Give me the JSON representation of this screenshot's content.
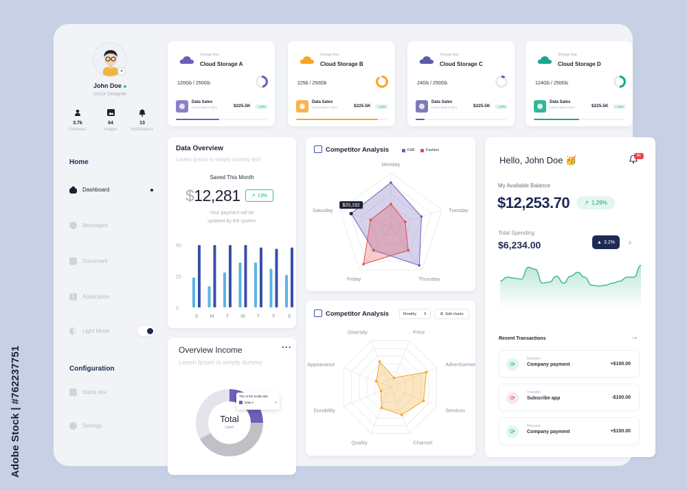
{
  "watermark": "Adobe Stock | #762237751",
  "profile": {
    "name": "John Doe",
    "role": "UI/UX Designer",
    "stats": [
      {
        "value": "3.7k",
        "label": "Followers",
        "icon": "person-icon"
      },
      {
        "value": "64",
        "label": "Images",
        "icon": "image-icon"
      },
      {
        "value": "13",
        "label": "Notifications",
        "icon": "bell-icon"
      }
    ]
  },
  "nav": {
    "home_heading": "Home",
    "items": [
      {
        "label": "Dashboard",
        "icon": "home-icon",
        "active": true
      },
      {
        "label": "Messages",
        "icon": "message-icon"
      },
      {
        "label": "Document",
        "icon": "document-icon"
      },
      {
        "label": "Application",
        "icon": "grid-icon"
      },
      {
        "label": "Light Mode",
        "icon": "contrast-icon",
        "toggle": true
      }
    ],
    "config_heading": "Configuration",
    "config_items": [
      {
        "label": "Stack dev",
        "icon": "stack-icon"
      },
      {
        "label": "Settings",
        "icon": "gear-icon"
      }
    ]
  },
  "storage": [
    {
      "eyebrow": "Storage Aaa",
      "title": "Cloud Storage A",
      "usage": "120Gb / 250Gb",
      "ds_title": "Data Sales",
      "ds_sub": "Lorem ipsum dolor",
      "value": "$225.5K",
      "pct": "↑ 12%",
      "color": "#6b5fb8",
      "fill": 0.48,
      "thumb": "#8e7ec9"
    },
    {
      "eyebrow": "Storage Aaa",
      "title": "Cloud Storage B",
      "usage": "225b / 250Gb",
      "ds_title": "Data Sales",
      "ds_sub": "Lorem ipsum dolor",
      "value": "$225.5K",
      "pct": "↑ 12%",
      "color": "#f5a623",
      "fill": 0.9,
      "thumb": "#f6b450"
    },
    {
      "eyebrow": "Storage Aaa",
      "title": "Cloud Storage C",
      "usage": "24Gb / 250Gb",
      "ds_title": "Data Sales",
      "ds_sub": "Lorem ipsum dolor",
      "value": "$225.5K",
      "pct": "↑ 12%",
      "color": "#5c5ba8",
      "fill": 0.1,
      "thumb": "#7e7ab8"
    },
    {
      "eyebrow": "Storage Aaa",
      "title": "Cloud Storage D",
      "usage": "124Gb / 250Gb",
      "ds_title": "Data Sales",
      "ds_sub": "Lorem ipsum dolor",
      "value": "$225.5K",
      "pct": "↑ 12%",
      "color": "#1aa68a",
      "fill": 0.5,
      "thumb": "#2fb89a"
    }
  ],
  "overview": {
    "title": "Data Overview",
    "subtitle": "Lorem Ipsum is simply dummy text",
    "saved_label": "Saved This Month",
    "currency": "$",
    "amount": "12,281",
    "badge": "13%",
    "note_line1": "Your payment will be",
    "note_line2": "updated by the system"
  },
  "chart_data": [
    {
      "type": "bar",
      "categories": [
        "S",
        "M",
        "T",
        "W",
        "T",
        "F",
        "S"
      ],
      "series": [
        {
          "values": [
            24,
            17,
            28,
            36,
            36,
            31,
            26
          ],
          "color": "#5ab4e5"
        },
        {
          "values": [
            50,
            50,
            50,
            50,
            48,
            47,
            48
          ],
          "color": "#3a4fa8"
        }
      ],
      "ylim": [
        0,
        50
      ],
      "yticks": [
        "50",
        "25",
        "0"
      ]
    },
    {
      "type": "radar",
      "title": "Competitor Analysis",
      "axes": [
        "Monday",
        "Tuesday",
        "Thursday",
        "Friday",
        "Saturday"
      ],
      "series": [
        {
          "name": "F&B",
          "color": "#6b5fb8",
          "values": [
            0.82,
            0.6,
            0.9,
            0.55,
            0.78
          ]
        },
        {
          "name": "Fashion",
          "color": "#e5484d",
          "values": [
            0.42,
            0.28,
            0.55,
            0.87,
            0.4
          ]
        }
      ],
      "tooltip": "$20,192"
    },
    {
      "type": "radar",
      "title": "Competitor Analysis",
      "axes": [
        "Price",
        "Advertisement",
        "Services",
        "Channel",
        "Quality",
        "Durability",
        "Appearance",
        "Diversity"
      ],
      "series": [
        {
          "color": "#f5a623",
          "values": [
            0.2,
            0.78,
            0.72,
            0.6,
            0.45,
            0.2,
            0.3,
            0.55
          ]
        }
      ]
    },
    {
      "type": "pie",
      "title": "Overview Income",
      "slices": [
        {
          "label": "Data A",
          "value": 25,
          "color": "#6b5fb8"
        },
        {
          "value": 42,
          "color": "#bfc1c6"
        },
        {
          "value": 33,
          "color": "#e3e5ea"
        }
      ]
    },
    {
      "type": "area",
      "color": "#3dbb8a",
      "values": [
        48,
        52,
        51,
        50,
        62,
        60,
        46,
        47,
        53,
        46,
        53,
        57,
        52,
        44,
        43,
        44,
        46,
        48,
        52,
        52,
        64
      ]
    }
  ],
  "income": {
    "title": "Overview Income",
    "subtitle": "Lorem Ipsum is simply dummy",
    "tooltip_title": "This is the tooltip title",
    "tooltip_item": "Data A",
    "center_big": "Total",
    "center_small": "Label"
  },
  "competitor1": {
    "title": "Competitor Analysis",
    "legend": [
      "F&B",
      "Fashion"
    ],
    "tooltip": "$20,192"
  },
  "competitor2": {
    "title": "Competitor Analysis",
    "period": "Monthly",
    "edit": "Edit charts"
  },
  "wallet": {
    "greeting": "Hello, John Doe",
    "emoji": "🥳",
    "notif": "9+",
    "balance_label": "My Available Balance",
    "balance": "$12,253.70",
    "balance_change": "1,29%",
    "spend_label": "Total Spending",
    "spend": "$6,234.00",
    "spend_change": "3.2%",
    "recent_label": "Recent Transactions",
    "transactions": [
      {
        "type": "Receive",
        "name": "Company payment",
        "amount": "+$100.00",
        "color": "#1aa68a",
        "bg": "#e2f5ef"
      },
      {
        "type": "Transfer",
        "name": "Subscribe app",
        "amount": "-$100.00",
        "color": "#d0408a",
        "bg": "#fbe6f0"
      },
      {
        "type": "Receive",
        "name": "Company payment",
        "amount": "+$100.00",
        "color": "#1aa68a",
        "bg": "#e2f5ef"
      }
    ]
  }
}
